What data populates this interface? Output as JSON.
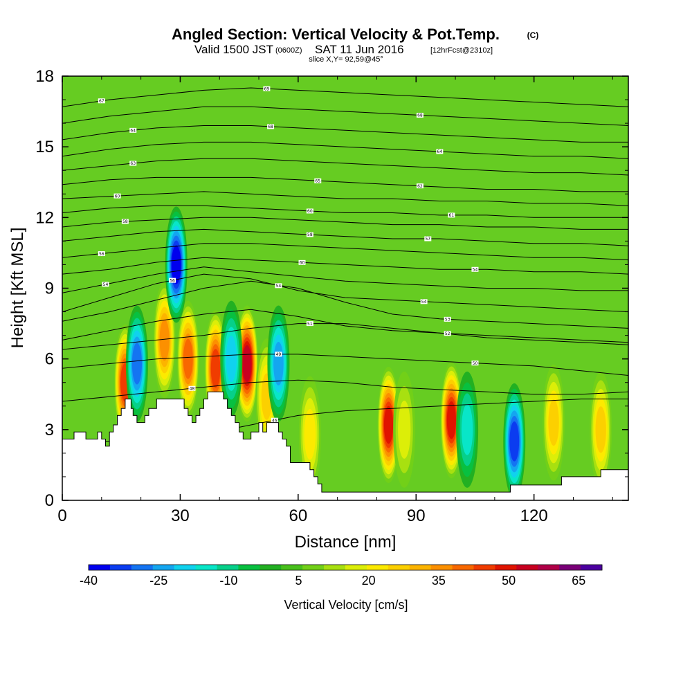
{
  "header": {
    "title": "Angled Section: Vertical Velocity & Pot.Temp.",
    "title_mark": "(C)",
    "valid_prefix": "Valid 1500 JST",
    "valid_zulu": "(0600Z)",
    "valid_date": "SAT 11 Jun 2016",
    "valid_fcst": "[12hrFcst@2310z]",
    "slice": "slice X,Y= 92,59@45°"
  },
  "colors": {
    "background_field": "#66cc22",
    "terrain": "#ffffff",
    "contour": "#000000",
    "frame": "#000000"
  },
  "chart_data": {
    "type": "heatmap",
    "title": "Angled Section: Vertical Velocity & Pot.Temp.",
    "xlabel": "Distance [nm]",
    "ylabel": "Height [Kft MSL]",
    "xlim": [
      0,
      144
    ],
    "ylim": [
      0,
      18
    ],
    "x_ticks": [
      "0",
      "30",
      "60",
      "90",
      "120"
    ],
    "x_tick_values": [
      0,
      30,
      60,
      90,
      120
    ],
    "y_ticks": [
      "0",
      "3",
      "6",
      "9",
      "12",
      "15",
      "18"
    ],
    "y_tick_values": [
      0,
      3,
      6,
      9,
      12,
      15,
      18
    ],
    "colorbar": {
      "label": "Vertical Velocity [cm/s]",
      "ticks": [
        "-40",
        "-25",
        "-10",
        "5",
        "20",
        "35",
        "50",
        "65"
      ],
      "tick_values": [
        -40,
        -25,
        -10,
        5,
        20,
        35,
        50,
        65
      ],
      "range": [
        -40,
        70
      ],
      "step": 5,
      "colors": [
        "#0000ee",
        "#0b3cf0",
        "#1474f2",
        "#14a6f0",
        "#10d2ee",
        "#08e6c8",
        "#06d08a",
        "#08c040",
        "#22b022",
        "#48c01c",
        "#72d018",
        "#a8e010",
        "#dcee08",
        "#fcea00",
        "#fcd000",
        "#fcb400",
        "#fc9000",
        "#f86800",
        "#f03c00",
        "#e01400",
        "#c80020",
        "#b00048",
        "#7a0078",
        "#4c00a0"
      ]
    },
    "terrain_profile": [
      [
        0,
        2.6
      ],
      [
        3,
        2.6
      ],
      [
        3,
        2.9
      ],
      [
        6,
        2.9
      ],
      [
        6,
        2.6
      ],
      [
        9,
        2.6
      ],
      [
        9,
        2.9
      ],
      [
        10,
        2.9
      ],
      [
        10,
        2.6
      ],
      [
        11,
        2.6
      ],
      [
        11,
        2.3
      ],
      [
        12,
        2.3
      ],
      [
        12,
        2.9
      ],
      [
        13,
        2.9
      ],
      [
        13,
        3.2
      ],
      [
        14,
        3.2
      ],
      [
        14,
        3.6
      ],
      [
        15,
        3.6
      ],
      [
        15,
        3.9
      ],
      [
        16,
        3.9
      ],
      [
        16,
        4.3
      ],
      [
        17.5,
        4.3
      ],
      [
        17.5,
        3.9
      ],
      [
        18,
        3.9
      ],
      [
        18,
        3.6
      ],
      [
        19,
        3.6
      ],
      [
        19,
        3.3
      ],
      [
        21,
        3.3
      ],
      [
        21,
        3.6
      ],
      [
        22,
        3.6
      ],
      [
        22,
        3.9
      ],
      [
        24,
        3.9
      ],
      [
        24,
        4.3
      ],
      [
        31,
        4.3
      ],
      [
        31,
        3.9
      ],
      [
        32,
        3.9
      ],
      [
        32,
        3.6
      ],
      [
        33,
        3.6
      ],
      [
        33,
        3.3
      ],
      [
        34,
        3.3
      ],
      [
        34,
        3.6
      ],
      [
        35,
        3.6
      ],
      [
        35,
        3.9
      ],
      [
        36,
        3.9
      ],
      [
        36,
        4.3
      ],
      [
        37,
        4.3
      ],
      [
        37,
        4.6
      ],
      [
        41,
        4.6
      ],
      [
        41,
        4.3
      ],
      [
        42,
        4.3
      ],
      [
        42,
        3.9
      ],
      [
        43,
        3.9
      ],
      [
        43,
        3.6
      ],
      [
        44,
        3.6
      ],
      [
        44,
        3.3
      ],
      [
        45,
        3.3
      ],
      [
        45,
        2.9
      ],
      [
        46,
        2.9
      ],
      [
        46,
        2.6
      ],
      [
        48,
        2.6
      ],
      [
        48,
        2.9
      ],
      [
        50,
        2.9
      ],
      [
        50,
        3.3
      ],
      [
        51,
        3.3
      ],
      [
        51,
        2.9
      ],
      [
        52,
        2.9
      ],
      [
        52,
        3.3
      ],
      [
        55,
        3.3
      ],
      [
        55,
        2.9
      ],
      [
        56,
        2.9
      ],
      [
        56,
        2.6
      ],
      [
        57,
        2.6
      ],
      [
        57,
        2.3
      ],
      [
        58,
        2.3
      ],
      [
        58,
        1.6
      ],
      [
        63,
        1.6
      ],
      [
        63,
        1.3
      ],
      [
        64,
        1.3
      ],
      [
        64,
        1.0
      ],
      [
        65,
        1.0
      ],
      [
        65,
        0.7
      ],
      [
        66,
        0.7
      ],
      [
        66,
        0.35
      ],
      [
        114,
        0.35
      ],
      [
        114,
        0.65
      ],
      [
        127,
        0.65
      ],
      [
        127,
        1.0
      ],
      [
        137,
        1.0
      ],
      [
        137,
        1.3
      ],
      [
        144,
        1.3
      ]
    ],
    "updraft_cores": [
      {
        "x": 16,
        "y": 5.0,
        "value": 48
      },
      {
        "x": 26,
        "y": 6.8,
        "value": 40
      },
      {
        "x": 32,
        "y": 6.0,
        "value": 46
      },
      {
        "x": 39,
        "y": 5.6,
        "value": 50
      },
      {
        "x": 47,
        "y": 5.8,
        "value": 58
      },
      {
        "x": 52,
        "y": 4.4,
        "value": 30
      },
      {
        "x": 63,
        "y": 2.8,
        "value": 26
      },
      {
        "x": 83,
        "y": 3.2,
        "value": 55
      },
      {
        "x": 87,
        "y": 3.0,
        "value": 22
      },
      {
        "x": 99,
        "y": 3.4,
        "value": 56
      },
      {
        "x": 125,
        "y": 3.3,
        "value": 32
      },
      {
        "x": 137,
        "y": 3.0,
        "value": 28
      }
    ],
    "downdraft_cores": [
      {
        "x": 19,
        "y": 5.8,
        "value": -30
      },
      {
        "x": 29,
        "y": 10.0,
        "value": -40
      },
      {
        "x": 43,
        "y": 6.0,
        "value": -22
      },
      {
        "x": 55,
        "y": 5.8,
        "value": -26
      },
      {
        "x": 115,
        "y": 2.5,
        "value": -34
      },
      {
        "x": 103,
        "y": 3.0,
        "value": -14
      }
    ],
    "potential_temperature_contours": [
      {
        "values": [
          2.3,
          2.5,
          2.7,
          2.8,
          3.2,
          3.6,
          3.8,
          3.9,
          4.0,
          4.1,
          4.2,
          4.3,
          4.3
        ],
        "labels": [
          {
            "x": 54,
            "text": "46"
          }
        ]
      },
      {
        "values": [
          4.2,
          4.4,
          4.6,
          4.8,
          5.0,
          5.1,
          5.0,
          4.8,
          4.7,
          4.6,
          4.5,
          4.5,
          4.6
        ],
        "labels": [
          {
            "x": 33,
            "text": "48"
          }
        ]
      },
      {
        "values": [
          5.6,
          5.8,
          6.0,
          6.1,
          6.2,
          6.2,
          6.1,
          6.0,
          5.9,
          5.8,
          5.7,
          5.5,
          5.3
        ],
        "labels": [
          {
            "x": 55,
            "text": "49"
          },
          {
            "x": 105,
            "text": "50"
          }
        ]
      },
      {
        "values": [
          6.4,
          6.6,
          6.8,
          7.0,
          7.3,
          7.5,
          7.5,
          7.3,
          7.1,
          6.9,
          6.8,
          6.7,
          6.6
        ],
        "labels": [
          {
            "x": 63,
            "text": "51"
          }
        ]
      },
      {
        "values": [
          6.8,
          7.2,
          7.6,
          7.9,
          8.1,
          7.8,
          7.4,
          7.2,
          7.1,
          7.0,
          6.9,
          6.8,
          6.7
        ],
        "labels": [
          {
            "x": 98,
            "text": "52"
          }
        ]
      },
      {
        "values": [
          7.6,
          8.0,
          8.5,
          9.0,
          9.3,
          9.0,
          8.4,
          7.9,
          7.7,
          7.6,
          7.5,
          7.4,
          7.3
        ],
        "labels": [
          {
            "x": 98,
            "text": "53"
          }
        ]
      },
      {
        "values": [
          8.0,
          8.6,
          9.2,
          9.6,
          9.4,
          8.9,
          8.6,
          8.5,
          8.4,
          8.3,
          8.2,
          8.1,
          8.0
        ],
        "labels": [
          {
            "x": 28,
            "text": "56"
          },
          {
            "x": 55,
            "text": "54"
          },
          {
            "x": 92,
            "text": "54"
          }
        ]
      },
      {
        "values": [
          8.8,
          9.2,
          9.6,
          9.9,
          9.7,
          9.5,
          9.3,
          9.2,
          9.1,
          9.0,
          9.0,
          8.9,
          8.9
        ],
        "labels": [
          {
            "x": 11,
            "text": "54"
          }
        ]
      },
      {
        "values": [
          9.6,
          9.8,
          10.1,
          10.3,
          10.2,
          10.1,
          10.0,
          9.9,
          9.8,
          9.8,
          9.7,
          9.7,
          9.6
        ],
        "labels": [
          {
            "x": 61,
            "text": "60"
          },
          {
            "x": 105,
            "text": "54"
          }
        ]
      },
      {
        "values": [
          10.3,
          10.5,
          10.7,
          10.9,
          10.9,
          10.8,
          10.7,
          10.6,
          10.5,
          10.4,
          10.3,
          10.3,
          10.2
        ],
        "labels": [
          {
            "x": 10,
            "text": "56"
          }
        ]
      },
      {
        "values": [
          11.0,
          11.2,
          11.4,
          11.5,
          11.4,
          11.3,
          11.2,
          11.1,
          11.1,
          11.0,
          10.9,
          10.9,
          10.8
        ],
        "labels": [
          {
            "x": 63,
            "text": "58"
          },
          {
            "x": 93,
            "text": "57"
          }
        ]
      },
      {
        "values": [
          11.6,
          11.8,
          11.9,
          12.0,
          12.0,
          11.9,
          11.8,
          11.7,
          11.7,
          11.6,
          11.6,
          11.5,
          11.5
        ],
        "labels": [
          {
            "x": 16,
            "text": "58"
          }
        ]
      },
      {
        "values": [
          12.2,
          12.4,
          12.5,
          12.5,
          12.4,
          12.3,
          12.2,
          12.2,
          12.1,
          12.1,
          12.0,
          12.0,
          12.0
        ],
        "labels": [
          {
            "x": 63,
            "text": "60"
          },
          {
            "x": 99,
            "text": "61"
          }
        ]
      },
      {
        "values": [
          12.8,
          12.9,
          13.0,
          13.1,
          13.0,
          12.9,
          12.8,
          12.8,
          12.7,
          12.7,
          12.6,
          12.6,
          12.5
        ],
        "labels": [
          {
            "x": 14,
            "text": "60"
          }
        ]
      },
      {
        "values": [
          13.4,
          13.6,
          13.7,
          13.7,
          13.7,
          13.6,
          13.5,
          13.4,
          13.3,
          13.2,
          13.2,
          13.1,
          13.1
        ],
        "labels": [
          {
            "x": 65,
            "text": "65"
          },
          {
            "x": 91,
            "text": "62"
          }
        ]
      },
      {
        "values": [
          14.0,
          14.2,
          14.4,
          14.5,
          14.5,
          14.4,
          14.3,
          14.2,
          14.1,
          14.0,
          13.9,
          13.9,
          13.8
        ],
        "labels": [
          {
            "x": 18,
            "text": "63"
          }
        ]
      },
      {
        "values": [
          14.6,
          14.9,
          15.1,
          15.2,
          15.2,
          15.1,
          15.0,
          14.9,
          14.8,
          14.7,
          14.6,
          14.6,
          14.5
        ],
        "labels": [
          {
            "x": 96,
            "text": "64"
          }
        ]
      },
      {
        "values": [
          15.3,
          15.6,
          15.8,
          15.9,
          15.9,
          15.8,
          15.7,
          15.6,
          15.5,
          15.4,
          15.3,
          15.2,
          15.2
        ],
        "labels": [
          {
            "x": 18,
            "text": "64"
          },
          {
            "x": 53,
            "text": "68"
          }
        ]
      },
      {
        "values": [
          16.0,
          16.3,
          16.5,
          16.7,
          16.7,
          16.6,
          16.5,
          16.4,
          16.3,
          16.2,
          16.1,
          16.0,
          15.9
        ],
        "labels": [
          {
            "x": 91,
            "text": "68"
          }
        ]
      },
      {
        "values": [
          16.7,
          17.0,
          17.2,
          17.4,
          17.5,
          17.4,
          17.3,
          17.2,
          17.1,
          17.0,
          16.9,
          16.8,
          16.7
        ],
        "labels": [
          {
            "x": 10,
            "text": "67"
          },
          {
            "x": 52,
            "text": "69"
          }
        ]
      }
    ]
  }
}
